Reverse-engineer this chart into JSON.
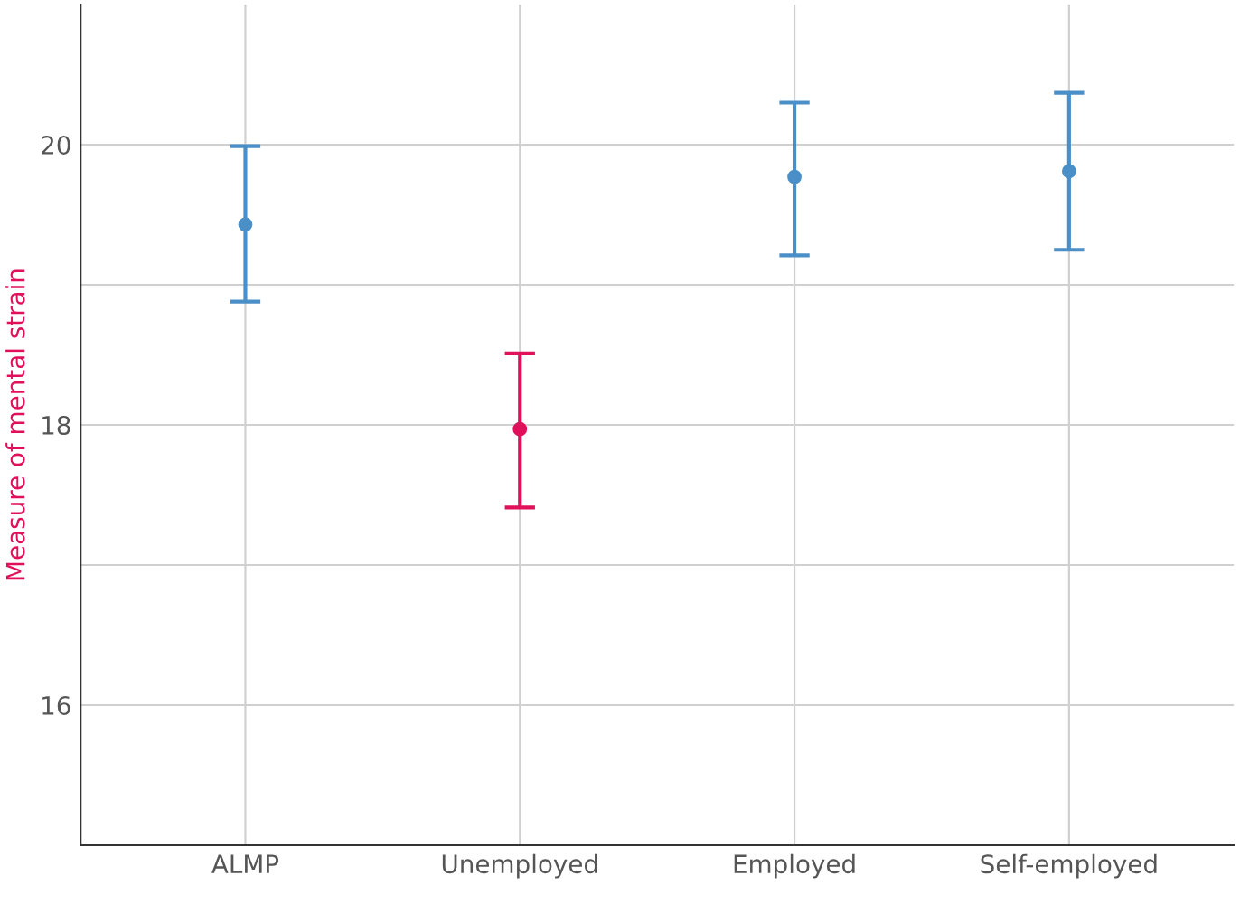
{
  "chart_data": {
    "type": "scatter",
    "ylabel": "Measure of mental strain",
    "categories": [
      "ALMP",
      "Unemployed",
      "Employed",
      "Self-employed"
    ],
    "values": [
      19.43,
      17.97,
      19.77,
      19.81
    ],
    "errors": [
      [
        18.88,
        19.99
      ],
      [
        17.41,
        18.51
      ],
      [
        19.21,
        20.3
      ],
      [
        19.25,
        20.37
      ]
    ],
    "colors": [
      "#4a8fc7",
      "#e0105a",
      "#4a8fc7",
      "#4a8fc7"
    ],
    "ylim": [
      15,
      21
    ],
    "yticks": [
      16,
      {
        "value": 17,
        "label": null
      },
      18,
      {
        "value": 19,
        "label": null
      },
      20
    ],
    "grid": true,
    "marker": "circle"
  }
}
